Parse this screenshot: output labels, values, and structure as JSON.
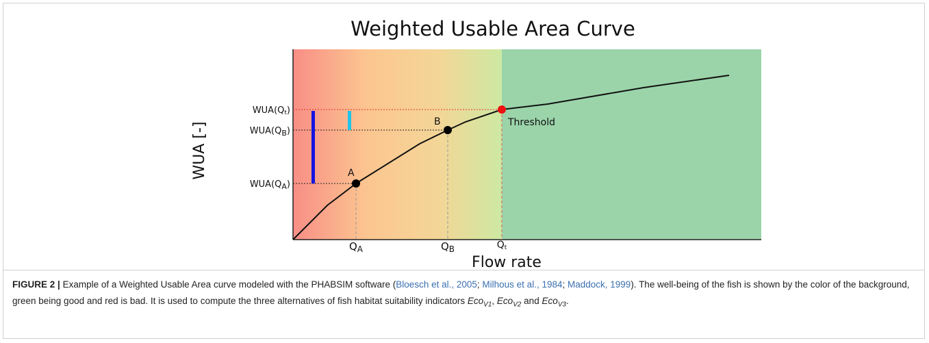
{
  "figure": {
    "title": "Weighted Usable Area Curve",
    "y_label": "WUA [-]",
    "x_label": "Flow rate",
    "y_marks": [
      {
        "text": "WUA(Q",
        "sub": "t",
        "end": ")"
      },
      {
        "text": "WUA(Q",
        "sub": "B",
        "end": ")"
      },
      {
        "text": "WUA(Q",
        "sub": "A",
        "end": ")"
      }
    ],
    "x_marks": [
      {
        "text": "Q",
        "sub": "A"
      },
      {
        "text": "Q",
        "sub": "B"
      },
      {
        "text": "Q",
        "sub": "t"
      }
    ],
    "points": [
      "A",
      "B"
    ],
    "threshold": "Threshold"
  },
  "caption": {
    "label": "FIGURE 2 |",
    "parts": [
      "Example of a Weighted Usable Area curve modeled with the PHABSIM software (",
      "; ",
      "; ",
      "). The well-being of the fish is shown by the color of the background, green being good and red is bad. It is used to compute the three alternatives of fish habitat suitability indicators ",
      ", ",
      " and ",
      "."
    ],
    "refs": [
      "Bloesch et al., 2005",
      "Milhous et al., 1984",
      "Maddock, 1999"
    ],
    "indicators": [
      {
        "text": "Eco",
        "sub": "V1"
      },
      {
        "text": "Eco",
        "sub": "V2"
      },
      {
        "text": "Eco",
        "sub": "V3"
      }
    ]
  }
}
